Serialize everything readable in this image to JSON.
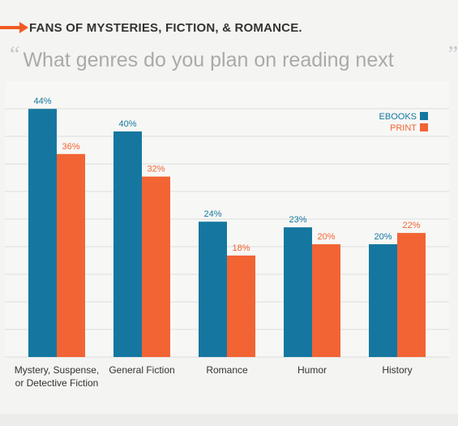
{
  "header": {
    "title": "FANS OF MYSTERIES, FICTION, & ROMANCE.",
    "accent_color": "#f15a22",
    "icon": "arrow-right-icon"
  },
  "question": {
    "open_quote": "“",
    "text": "What genres do you plan on reading next month?",
    "close_quote": "”"
  },
  "chart_data": {
    "type": "bar",
    "title": "",
    "xlabel": "",
    "ylabel": "",
    "ylim": [
      0,
      100
    ],
    "grid": "horizontal",
    "legend_position": "top-right",
    "categories": [
      [
        "Mystery, Suspense,",
        "or Detective Fiction"
      ],
      [
        "General Fiction"
      ],
      [
        "Romance"
      ],
      [
        "Humor"
      ],
      [
        "History"
      ]
    ],
    "series": [
      {
        "name": "EBOOKS",
        "color": "#1577a0",
        "values": [
          44,
          40,
          24,
          23,
          20
        ],
        "labels": [
          "44%",
          "40%",
          "24%",
          "23%",
          "20%"
        ]
      },
      {
        "name": "PRINT",
        "color": "#f26434",
        "values": [
          36,
          32,
          18,
          20,
          22
        ],
        "labels": [
          "36%",
          "32%",
          "18%",
          "20%",
          "22%"
        ]
      }
    ]
  }
}
